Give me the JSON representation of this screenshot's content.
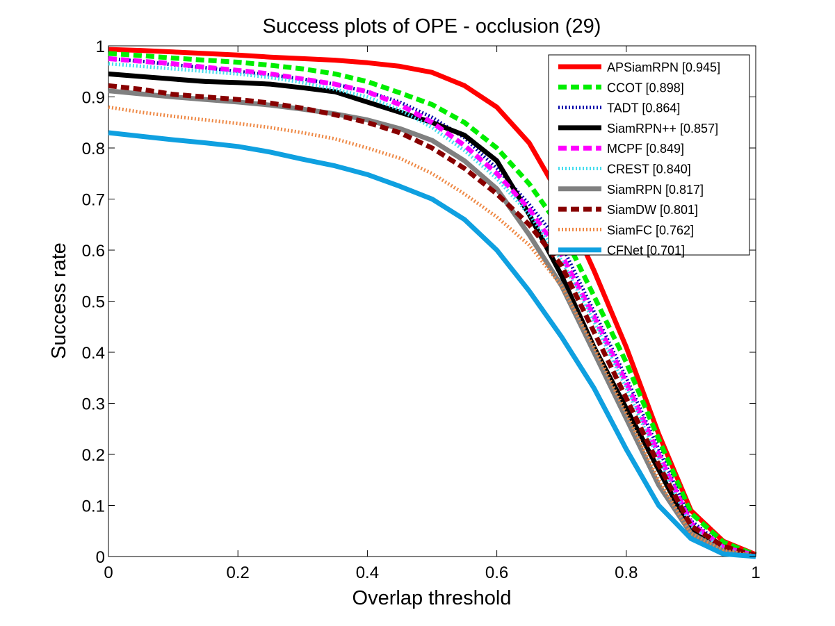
{
  "chart_data": {
    "type": "line",
    "title": "Success plots of OPE - occlusion (29)",
    "xlabel": "Overlap threshold",
    "ylabel": "Success rate",
    "xlim": [
      0,
      1
    ],
    "ylim": [
      0,
      1
    ],
    "xticks": [
      "0",
      "0.2",
      "0.4",
      "0.6",
      "0.8",
      "1"
    ],
    "yticks": [
      "0",
      "0.1",
      "0.2",
      "0.3",
      "0.4",
      "0.5",
      "0.6",
      "0.7",
      "0.8",
      "0.9",
      "1"
    ],
    "grid": false,
    "legend_position": "top-right",
    "x": [
      0,
      0.05,
      0.1,
      0.15,
      0.2,
      0.25,
      0.3,
      0.35,
      0.4,
      0.45,
      0.5,
      0.55,
      0.6,
      0.65,
      0.7,
      0.75,
      0.8,
      0.85,
      0.9,
      0.95,
      1
    ],
    "series": [
      {
        "name": "APSiamRPN [0.945]",
        "color": "#ff0000",
        "style": "solid",
        "width": 7,
        "values": [
          0.993,
          0.991,
          0.988,
          0.985,
          0.982,
          0.978,
          0.975,
          0.972,
          0.967,
          0.96,
          0.948,
          0.922,
          0.88,
          0.81,
          0.7,
          0.56,
          0.41,
          0.24,
          0.09,
          0.03,
          0.004
        ]
      },
      {
        "name": "CCOT [0.898]",
        "color": "#00ee00",
        "style": "dashed",
        "width": 7,
        "values": [
          0.985,
          0.981,
          0.976,
          0.972,
          0.968,
          0.962,
          0.955,
          0.945,
          0.93,
          0.908,
          0.885,
          0.85,
          0.8,
          0.73,
          0.64,
          0.51,
          0.38,
          0.23,
          0.085,
          0.028,
          0.003
        ]
      },
      {
        "name": "TADT [0.864]",
        "color": "#0000aa",
        "style": "dotted",
        "width": 5,
        "values": [
          0.975,
          0.97,
          0.963,
          0.957,
          0.95,
          0.943,
          0.935,
          0.925,
          0.91,
          0.89,
          0.86,
          0.82,
          0.76,
          0.69,
          0.61,
          0.48,
          0.35,
          0.21,
          0.07,
          0.02,
          0.002
        ]
      },
      {
        "name": "SiamRPN++ [0.857]",
        "color": "#000000",
        "style": "solid",
        "width": 7,
        "values": [
          0.945,
          0.94,
          0.935,
          0.93,
          0.928,
          0.925,
          0.918,
          0.91,
          0.89,
          0.87,
          0.85,
          0.825,
          0.775,
          0.67,
          0.55,
          0.41,
          0.29,
          0.17,
          0.05,
          0.01,
          0.001
        ]
      },
      {
        "name": "MCPF [0.849]",
        "color": "#ff00ff",
        "style": "dashed",
        "width": 7,
        "values": [
          0.975,
          0.97,
          0.965,
          0.958,
          0.952,
          0.945,
          0.935,
          0.925,
          0.91,
          0.885,
          0.85,
          0.805,
          0.75,
          0.68,
          0.59,
          0.47,
          0.34,
          0.2,
          0.065,
          0.018,
          0.002
        ]
      },
      {
        "name": "CREST [0.840]",
        "color": "#44ddee",
        "style": "dotted",
        "width": 5,
        "values": [
          0.965,
          0.96,
          0.955,
          0.95,
          0.945,
          0.938,
          0.928,
          0.915,
          0.9,
          0.875,
          0.84,
          0.795,
          0.74,
          0.67,
          0.58,
          0.46,
          0.33,
          0.19,
          0.06,
          0.015,
          0.001
        ]
      },
      {
        "name": "SiamRPN [0.817]",
        "color": "#808080",
        "style": "solid",
        "width": 7,
        "values": [
          0.912,
          0.906,
          0.9,
          0.895,
          0.89,
          0.884,
          0.876,
          0.867,
          0.855,
          0.838,
          0.815,
          0.775,
          0.72,
          0.63,
          0.53,
          0.4,
          0.27,
          0.14,
          0.045,
          0.01,
          0.001
        ]
      },
      {
        "name": "SiamDW [0.801]",
        "color": "#880000",
        "style": "dashed",
        "width": 7,
        "values": [
          0.922,
          0.915,
          0.905,
          0.9,
          0.895,
          0.888,
          0.878,
          0.865,
          0.85,
          0.83,
          0.8,
          0.76,
          0.71,
          0.65,
          0.57,
          0.44,
          0.31,
          0.18,
          0.06,
          0.02,
          0.002
        ]
      },
      {
        "name": "SiamFC [0.762]",
        "color": "#ee8844",
        "style": "dotted",
        "width": 5,
        "values": [
          0.88,
          0.87,
          0.862,
          0.855,
          0.848,
          0.84,
          0.83,
          0.818,
          0.8,
          0.78,
          0.75,
          0.71,
          0.665,
          0.61,
          0.53,
          0.41,
          0.28,
          0.15,
          0.045,
          0.012,
          0.001
        ]
      },
      {
        "name": "CFNet [0.701]",
        "color": "#0fa0e0",
        "style": "solid",
        "width": 7,
        "values": [
          0.83,
          0.823,
          0.816,
          0.81,
          0.803,
          0.792,
          0.778,
          0.765,
          0.748,
          0.725,
          0.7,
          0.66,
          0.6,
          0.52,
          0.43,
          0.33,
          0.21,
          0.1,
          0.035,
          0.005,
          0.0
        ]
      }
    ]
  }
}
